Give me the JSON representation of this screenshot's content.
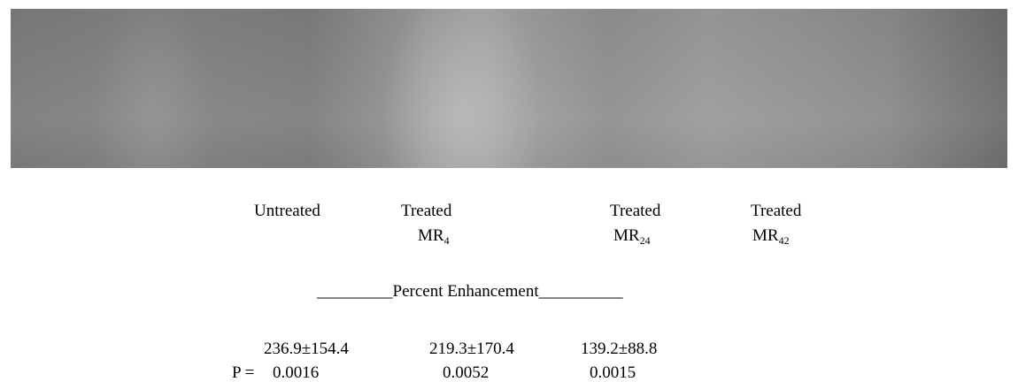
{
  "figure": {
    "columns": [
      {
        "line1": "Untreated"
      },
      {
        "line1": "Treated",
        "base": "MR",
        "sub": "4"
      },
      {
        "line1": "Treated",
        "base": "MR",
        "sub": "24"
      },
      {
        "line1": "Treated",
        "base": "MR",
        "sub": "42"
      }
    ],
    "heading": "_________Percent Enhancement__________",
    "enhancement": [
      "236.9±154.4",
      "219.3±170.4",
      "139.2±88.8"
    ],
    "p_label": "P =",
    "p_values": [
      "0.0016",
      "0.0052",
      "0.0015"
    ]
  }
}
